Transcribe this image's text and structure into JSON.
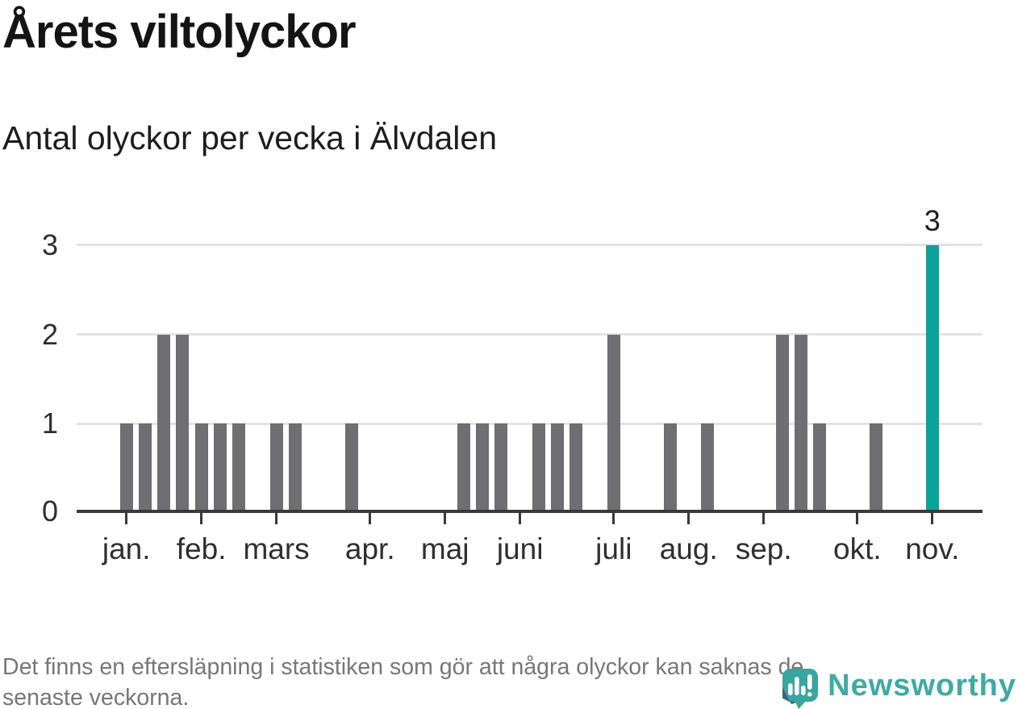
{
  "header": {
    "title": "Årets viltolyckor",
    "subtitle": "Antal olyckor per vecka i Älvdalen"
  },
  "footer": {
    "note": "Det finns en eftersläpning i statistiken som gör att några olyckor kan saknas de senaste veckorna.",
    "lines": [
      "Det finns en eftersläpning i statistiken som gör att några olyckor kan saknas de",
      "senaste veckorna."
    ]
  },
  "branding": {
    "logo_text": "Newsworthy",
    "logo_icon": "newsworthy-bar-chart-bubble-icon",
    "logo_color": "#3faaa3",
    "bubble_color": "#38a59e",
    "bubble_accent_color": "#3f5c86"
  },
  "chart_data": {
    "type": "bar",
    "title": "Årets viltolyckor",
    "subtitle": "Antal olyckor per vecka i Älvdalen",
    "xlabel": "",
    "ylabel": "",
    "x_unit": "vecka",
    "x": [
      1,
      2,
      3,
      4,
      5,
      6,
      7,
      8,
      9,
      10,
      11,
      12,
      13,
      14,
      15,
      16,
      17,
      18,
      19,
      20,
      21,
      22,
      23,
      24,
      25,
      26,
      27,
      28,
      29,
      30,
      31,
      32,
      33,
      34,
      35,
      36,
      37,
      38,
      39,
      40,
      41,
      42,
      43,
      44
    ],
    "series": [
      {
        "name": "Antal olyckor per vecka",
        "values": [
          1,
          1,
          2,
          2,
          1,
          1,
          1,
          0,
          1,
          1,
          0,
          0,
          1,
          0,
          0,
          0,
          0,
          0,
          1,
          1,
          1,
          0,
          1,
          1,
          1,
          0,
          2,
          0,
          0,
          1,
          0,
          1,
          0,
          0,
          0,
          2,
          2,
          1,
          0,
          0,
          1,
          0,
          0,
          3
        ]
      }
    ],
    "highlight": {
      "week": 44,
      "value": 3,
      "label": "3"
    },
    "ylim": [
      0,
      3
    ],
    "yticks": [
      0,
      1,
      2,
      3
    ],
    "xticks": [
      {
        "label": "jan.",
        "week": 1
      },
      {
        "label": "feb.",
        "week": 5
      },
      {
        "label": "mars",
        "week": 9
      },
      {
        "label": "apr.",
        "week": 14
      },
      {
        "label": "maj",
        "week": 18
      },
      {
        "label": "juni",
        "week": 22
      },
      {
        "label": "juli",
        "week": 27
      },
      {
        "label": "aug.",
        "week": 31
      },
      {
        "label": "sep.",
        "week": 35
      },
      {
        "label": "okt.",
        "week": 40
      },
      {
        "label": "nov.",
        "week": 44
      }
    ],
    "grid": true,
    "legend": "none",
    "colors": {
      "bar": "#6e6e73",
      "highlight": "#0ba29a",
      "gridline": "#e3e3e3",
      "axis": "#39393b",
      "tick_text": "#2f2f31"
    }
  }
}
